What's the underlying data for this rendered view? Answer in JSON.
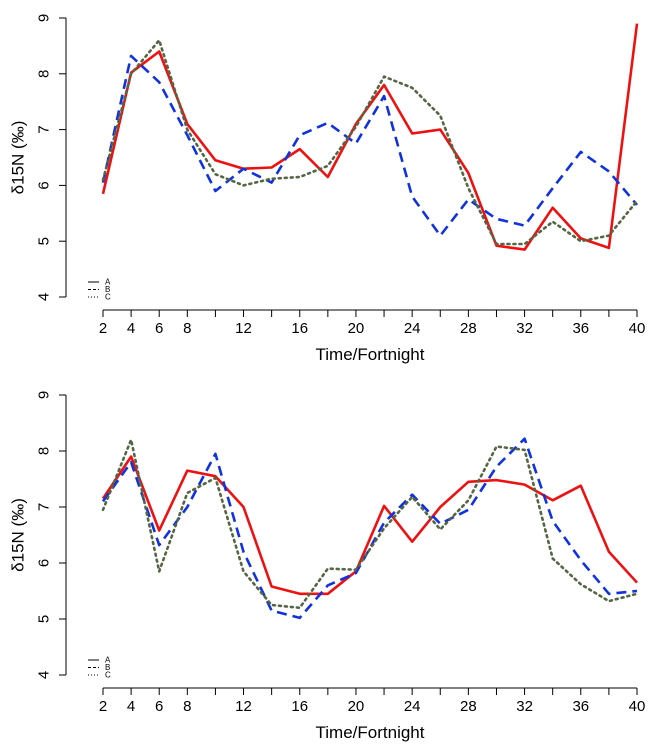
{
  "chart_data": [
    {
      "type": "line",
      "xlabel": "Time/Fortnight",
      "ylabel": "δ15N (‰)",
      "xlim": [
        2,
        40
      ],
      "ylim": [
        4,
        9
      ],
      "x_ticks": [
        2,
        4,
        6,
        8,
        10,
        12,
        14,
        16,
        18,
        20,
        22,
        24,
        26,
        28,
        30,
        32,
        34,
        36,
        38,
        40
      ],
      "x_tick_labels": [
        "2",
        "4",
        "6",
        "8",
        "",
        "12",
        "",
        "16",
        "",
        "20",
        "",
        "24",
        "",
        "28",
        "",
        "32",
        "",
        "36",
        "",
        "40"
      ],
      "y_ticks": [
        4,
        5,
        6,
        7,
        8,
        9
      ],
      "y_tick_labels": [
        "4",
        "5",
        "6",
        "7",
        "8",
        "9"
      ],
      "legend_position": "bottom-left",
      "x": [
        2,
        4,
        6,
        8,
        10,
        12,
        14,
        16,
        18,
        20,
        22,
        24,
        26,
        28,
        30,
        32,
        34,
        36,
        38,
        40
      ],
      "series": [
        {
          "name": "A",
          "color": "#ee1111",
          "style": "solid",
          "values": [
            5.85,
            8.02,
            8.4,
            7.1,
            6.45,
            6.3,
            6.32,
            6.65,
            6.15,
            7.1,
            7.8,
            6.93,
            7.0,
            6.22,
            4.92,
            4.85,
            5.6,
            5.05,
            4.88,
            8.9
          ]
        },
        {
          "name": "B",
          "color": "#1133dd",
          "style": "dashed",
          "values": [
            6.05,
            8.32,
            7.85,
            6.9,
            5.9,
            6.3,
            6.05,
            6.9,
            7.12,
            6.75,
            7.6,
            5.8,
            5.1,
            5.75,
            5.4,
            5.28,
            5.95,
            6.6,
            6.25,
            5.65
          ]
        },
        {
          "name": "C",
          "color": "#556644",
          "style": "dotted",
          "values": [
            6.1,
            8.0,
            8.6,
            7.0,
            6.2,
            6.0,
            6.12,
            6.15,
            6.35,
            7.05,
            7.95,
            7.75,
            7.25,
            5.95,
            4.95,
            4.95,
            5.35,
            5.0,
            5.1,
            5.72
          ]
        }
      ]
    },
    {
      "type": "line",
      "xlabel": "Time/Fortnight",
      "ylabel": "δ15N (‰)",
      "xlim": [
        2,
        40
      ],
      "ylim": [
        4,
        9
      ],
      "x_ticks": [
        2,
        4,
        6,
        8,
        10,
        12,
        14,
        16,
        18,
        20,
        22,
        24,
        26,
        28,
        30,
        32,
        34,
        36,
        38,
        40
      ],
      "x_tick_labels": [
        "2",
        "4",
        "6",
        "8",
        "",
        "12",
        "",
        "16",
        "",
        "20",
        "",
        "24",
        "",
        "28",
        "",
        "32",
        "",
        "36",
        "",
        "40"
      ],
      "y_ticks": [
        4,
        5,
        6,
        7,
        8,
        9
      ],
      "y_tick_labels": [
        "4",
        "5",
        "6",
        "7",
        "8",
        "9"
      ],
      "legend_position": "bottom-left",
      "x": [
        2,
        4,
        6,
        8,
        10,
        12,
        14,
        16,
        18,
        20,
        22,
        24,
        26,
        28,
        30,
        32,
        34,
        36,
        38,
        40
      ],
      "series": [
        {
          "name": "A",
          "color": "#ee1111",
          "style": "solid",
          "values": [
            7.15,
            7.9,
            6.58,
            7.65,
            7.55,
            7.0,
            5.58,
            5.45,
            5.45,
            5.85,
            7.02,
            6.38,
            7.0,
            7.45,
            7.48,
            7.4,
            7.12,
            7.38,
            6.2,
            5.65
          ]
        },
        {
          "name": "B",
          "color": "#1133dd",
          "style": "dashed",
          "values": [
            7.1,
            7.8,
            6.32,
            7.0,
            7.95,
            6.2,
            5.15,
            5.02,
            5.6,
            5.82,
            6.72,
            7.22,
            6.7,
            6.95,
            7.72,
            8.22,
            6.75,
            6.05,
            5.45,
            5.5
          ]
        },
        {
          "name": "C",
          "color": "#556644",
          "style": "dotted",
          "values": [
            6.95,
            8.2,
            5.85,
            7.25,
            7.52,
            5.85,
            5.25,
            5.2,
            5.9,
            5.88,
            6.62,
            7.18,
            6.6,
            7.12,
            8.08,
            8.02,
            6.08,
            5.62,
            5.32,
            5.45
          ]
        }
      ]
    }
  ]
}
